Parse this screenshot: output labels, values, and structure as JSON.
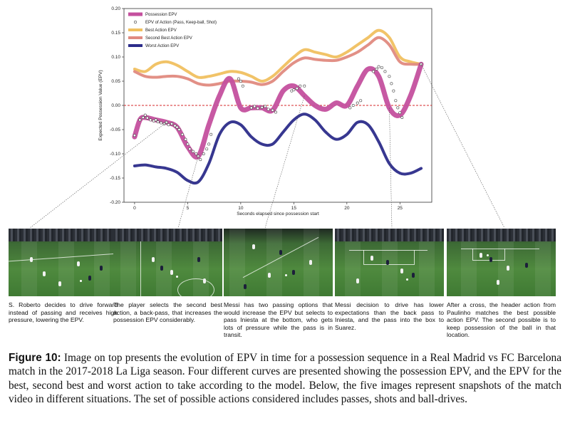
{
  "chart_data": {
    "type": "line",
    "title": "",
    "xlabel": "Seconds elapsed since possession start",
    "ylabel": "Expected Possession Value (EPV)",
    "xlim": [
      -1,
      28
    ],
    "ylim": [
      -0.2,
      0.2
    ],
    "xticks": [
      0,
      5,
      10,
      15,
      20,
      25
    ],
    "yticks": [
      -0.2,
      -0.15,
      -0.1,
      -0.05,
      0.0,
      0.05,
      0.1,
      0.15,
      0.2
    ],
    "ytick_labels": [
      "-0.20",
      "-0.15",
      "-0.10",
      "-0.05",
      "0.00",
      "0.05",
      "0.10",
      "0.15",
      "0.20"
    ],
    "reference_line": {
      "y": 0.0,
      "color": "#d62728",
      "style": "dashed"
    },
    "legend_position": "top-left",
    "series": [
      {
        "name": "Possession EPV",
        "color": "#c4509e",
        "width": 7,
        "x": [
          0,
          0.5,
          1,
          2,
          3,
          4,
          5,
          6,
          7,
          8,
          9,
          10,
          11,
          12,
          13,
          14,
          15,
          16,
          17,
          18,
          19,
          20,
          21,
          22,
          23,
          24,
          25,
          26,
          27
        ],
        "y": [
          -0.065,
          -0.03,
          -0.025,
          -0.03,
          -0.035,
          -0.045,
          -0.085,
          -0.105,
          -0.04,
          0.02,
          0.055,
          -0.005,
          -0.005,
          -0.005,
          -0.01,
          0.03,
          0.04,
          0.02,
          0.0,
          -0.008,
          0.005,
          0.0,
          0.04,
          0.075,
          0.06,
          -0.005,
          -0.02,
          0.02,
          0.085
        ]
      },
      {
        "name": "EPV of Action (Pass, Keep-ball, Shot)",
        "marker": "circle",
        "color": "#444444"
      },
      {
        "name": "Best Action EPV",
        "color": "#f0c060",
        "width": 4,
        "x": [
          0,
          1,
          2,
          3,
          4,
          5,
          6,
          7,
          8,
          9,
          10,
          11,
          12,
          13,
          14,
          15,
          16,
          17,
          18,
          19,
          20,
          21,
          22,
          23,
          24,
          25,
          26,
          27
        ],
        "y": [
          0.075,
          0.07,
          0.085,
          0.09,
          0.083,
          0.07,
          0.058,
          0.06,
          0.065,
          0.07,
          0.068,
          0.06,
          0.05,
          0.06,
          0.08,
          0.1,
          0.115,
          0.11,
          0.105,
          0.1,
          0.11,
          0.125,
          0.14,
          0.155,
          0.14,
          0.1,
          0.09,
          0.085
        ]
      },
      {
        "name": "Second Best Action EPV",
        "color": "#e08a80",
        "width": 4,
        "x": [
          0,
          1,
          2,
          3,
          4,
          5,
          6,
          7,
          8,
          9,
          10,
          11,
          12,
          13,
          14,
          15,
          16,
          17,
          18,
          19,
          20,
          21,
          22,
          23,
          24,
          25,
          26,
          27
        ],
        "y": [
          0.07,
          0.06,
          0.058,
          0.06,
          0.06,
          0.055,
          0.045,
          0.042,
          0.045,
          0.05,
          0.05,
          0.048,
          0.043,
          0.05,
          0.07,
          0.088,
          0.098,
          0.095,
          0.093,
          0.093,
          0.1,
          0.11,
          0.125,
          0.14,
          0.125,
          0.09,
          0.085,
          0.085
        ]
      },
      {
        "name": "Worst Action EPV",
        "color": "#2c2c8a",
        "width": 4,
        "x": [
          0,
          1,
          2,
          3,
          4,
          5,
          6,
          7,
          8,
          9,
          10,
          11,
          12,
          13,
          14,
          15,
          16,
          17,
          18,
          19,
          20,
          21,
          22,
          23,
          24,
          25,
          26,
          27
        ],
        "y": [
          -0.125,
          -0.123,
          -0.127,
          -0.13,
          -0.138,
          -0.155,
          -0.158,
          -0.12,
          -0.06,
          -0.035,
          -0.04,
          -0.065,
          -0.08,
          -0.08,
          -0.055,
          -0.03,
          -0.018,
          -0.03,
          -0.055,
          -0.07,
          -0.06,
          -0.035,
          -0.04,
          -0.075,
          -0.12,
          -0.14,
          -0.14,
          -0.13
        ]
      }
    ],
    "action_points": {
      "x": [
        0,
        0.5,
        0.8,
        1,
        1.2,
        1.5,
        1.8,
        2,
        2.2,
        2.5,
        2.8,
        3,
        3.2,
        3.5,
        3.8,
        4,
        4.2,
        4.5,
        4.8,
        5,
        5.2,
        5.5,
        5.8,
        6,
        6.2,
        6.5,
        6.8,
        7,
        7.2,
        9.8,
        10,
        10.2,
        11,
        11.3,
        11.6,
        12,
        12.3,
        12.6,
        13,
        13.3,
        14.8,
        15,
        15.3,
        15.6,
        16,
        20.3,
        20.6,
        21,
        21.3,
        22.5,
        22.8,
        23,
        23.3,
        23.6,
        24,
        24.2,
        24.4,
        24.6,
        24.8,
        25,
        25.2,
        27
      ],
      "y": [
        -0.062,
        -0.03,
        -0.025,
        -0.02,
        -0.026,
        -0.03,
        -0.032,
        -0.03,
        -0.034,
        -0.036,
        -0.038,
        -0.035,
        -0.04,
        -0.038,
        -0.042,
        -0.045,
        -0.05,
        -0.06,
        -0.07,
        -0.08,
        -0.09,
        -0.095,
        -0.1,
        -0.105,
        -0.112,
        -0.1,
        -0.09,
        -0.08,
        -0.06,
        0.055,
        0.05,
        0.04,
        -0.005,
        -0.002,
        -0.006,
        -0.004,
        -0.002,
        -0.008,
        -0.01,
        -0.014,
        0.03,
        0.032,
        0.035,
        0.04,
        0.04,
        -0.005,
        0.0,
        0.005,
        0.01,
        0.07,
        0.075,
        0.08,
        0.078,
        0.07,
        0.06,
        0.045,
        0.03,
        0.01,
        -0.005,
        -0.015,
        -0.025,
        0.085
      ]
    }
  },
  "panels": [
    {
      "caption": "S. Roberto decides to drive forward instead of passing and receives high pressure, lowering the EPV."
    },
    {
      "caption": "The player selects the second best action, a back-pass, that increases the possession EPV considerably."
    },
    {
      "caption": "Messi has two passing options that would increase the EPV but selects to pass Iniesta at the bottom, who gets lots of pressure while the pass is in transit."
    },
    {
      "caption": "Messi decision to drive has lower expectations than the back pass to Iniesta, and the pass into the box to Suarez."
    },
    {
      "caption": "After a cross, the header action from Paulinho matches the best possible action EPV. The second possible is to keep possession of the ball in that location."
    }
  ],
  "figure_caption": {
    "label": "Figure 10:",
    "text": "Image on top presents the evolution of EPV in time for a possession sequence in a Real Madrid vs FC Barcelona match in the 2017-2018 La Liga season. Four different curves are presented showing the possession EPV, and the EPV for the best, second best and worst action to take according to the model. Below, the five images represent snapshots of the match video in different situations. The set of possible actions considered includes passes, shots and ball-drives."
  }
}
